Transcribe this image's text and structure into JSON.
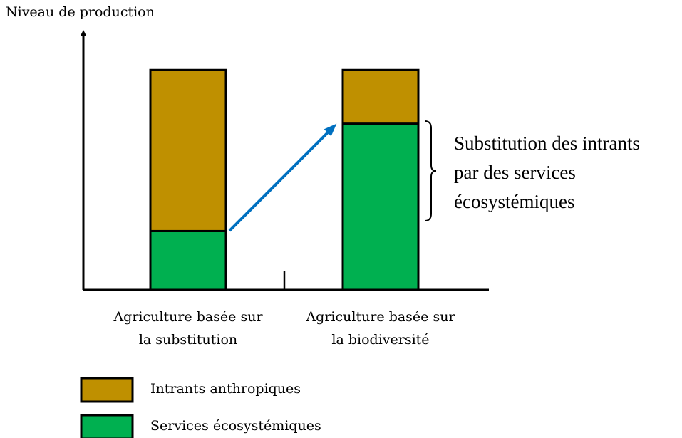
{
  "chart_data": {
    "type": "stacked_bar",
    "y_label": "Niveau de production",
    "categories": [
      [
        "Agriculture basée sur",
        "la substitution"
      ],
      [
        "Agriculture basée sur",
        "la biodiversité"
      ]
    ],
    "series": [
      {
        "name": "Services écosystémiques",
        "color": "#00b050",
        "values": [
          23,
          65
        ]
      },
      {
        "name": "Intrants anthropiques",
        "color": "#bf9000",
        "values": [
          63,
          21
        ]
      }
    ],
    "ylim": [
      0,
      100
    ],
    "annotation": [
      "Substitution des intrants",
      "par des services",
      "écosystémiques"
    ]
  }
}
